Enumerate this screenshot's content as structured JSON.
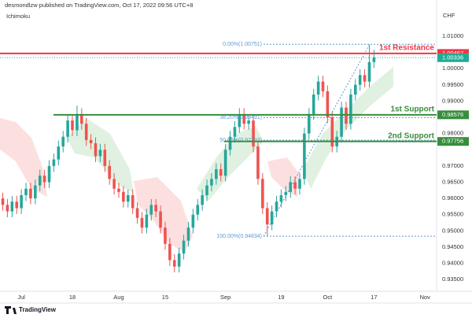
{
  "chart_data": {
    "type": "candlestick",
    "header": "desmondlzw published on TradingView.com, Oct 17, 2022 09:56 UTC+8",
    "indicator": "Ichimoku",
    "currency": "CHF",
    "footer": "TradingView",
    "up_color": "#26a69a",
    "down_color": "#ef5350",
    "x": [
      -4,
      -3,
      -2,
      -1,
      0,
      1,
      2,
      3,
      4,
      5,
      6,
      7,
      8,
      9,
      10,
      11,
      12,
      13,
      14,
      15,
      16,
      17,
      18,
      19,
      20,
      21,
      22,
      23,
      24,
      25,
      26,
      27,
      28,
      29,
      30,
      31,
      32,
      33,
      34,
      35,
      36,
      37,
      38,
      39,
      40,
      41,
      42,
      43,
      44,
      45,
      46,
      47,
      48,
      49,
      50,
      51,
      52,
      53,
      54,
      55,
      56,
      57,
      58,
      59,
      60,
      61,
      62,
      63,
      64,
      65,
      66,
      67,
      68,
      69,
      70,
      71,
      72,
      73,
      74,
      75,
      76
    ],
    "candles": [
      [
        0.96,
        0.9618,
        0.9562,
        0.958
      ],
      [
        0.958,
        0.9598,
        0.9542,
        0.956
      ],
      [
        0.956,
        0.9608,
        0.9542,
        0.959
      ],
      [
        0.959,
        0.9608,
        0.9552,
        0.957
      ],
      [
        0.957,
        0.9628,
        0.9552,
        0.961
      ],
      [
        0.961,
        0.9648,
        0.9592,
        0.963
      ],
      [
        0.963,
        0.9648,
        0.9582,
        0.96
      ],
      [
        0.96,
        0.9658,
        0.9582,
        0.964
      ],
      [
        0.964,
        0.9688,
        0.9622,
        0.967
      ],
      [
        0.967,
        0.9688,
        0.9632,
        0.965
      ],
      [
        0.965,
        0.9718,
        0.9632,
        0.97
      ],
      [
        0.97,
        0.9738,
        0.9682,
        0.972
      ],
      [
        0.972,
        0.9778,
        0.9702,
        0.976
      ],
      [
        0.976,
        0.9808,
        0.9742,
        0.979
      ],
      [
        0.979,
        0.9858,
        0.9772,
        0.984
      ],
      [
        0.984,
        0.9858,
        0.9792,
        0.981
      ],
      [
        0.981,
        0.9886,
        0.9792,
        0.986
      ],
      [
        0.986,
        0.9878,
        0.9812,
        0.983
      ],
      [
        0.983,
        0.9848,
        0.9762,
        0.978
      ],
      [
        0.978,
        0.9798,
        0.9752,
        0.977
      ],
      [
        0.977,
        0.9788,
        0.9712,
        0.973
      ],
      [
        0.973,
        0.9768,
        0.9712,
        0.975
      ],
      [
        0.975,
        0.9768,
        0.9682,
        0.97
      ],
      [
        0.97,
        0.9718,
        0.9642,
        0.966
      ],
      [
        0.966,
        0.9678,
        0.9612,
        0.963
      ],
      [
        0.963,
        0.9648,
        0.9602,
        0.962
      ],
      [
        0.962,
        0.9638,
        0.9572,
        0.959
      ],
      [
        0.959,
        0.9628,
        0.9572,
        0.961
      ],
      [
        0.961,
        0.9628,
        0.9552,
        0.957
      ],
      [
        0.957,
        0.9588,
        0.9522,
        0.954
      ],
      [
        0.954,
        0.9558,
        0.9492,
        0.951
      ],
      [
        0.951,
        0.9568,
        0.9492,
        0.955
      ],
      [
        0.955,
        0.9598,
        0.9532,
        0.958
      ],
      [
        0.958,
        0.9598,
        0.9542,
        0.956
      ],
      [
        0.956,
        0.9578,
        0.9492,
        0.951
      ],
      [
        0.951,
        0.9528,
        0.9442,
        0.946
      ],
      [
        0.946,
        0.9478,
        0.9392,
        0.941
      ],
      [
        0.941,
        0.9428,
        0.9372,
        0.939
      ],
      [
        0.939,
        0.9448,
        0.9372,
        0.943
      ],
      [
        0.943,
        0.9488,
        0.9412,
        0.947
      ],
      [
        0.947,
        0.9528,
        0.9452,
        0.951
      ],
      [
        0.951,
        0.9568,
        0.9492,
        0.955
      ],
      [
        0.955,
        0.9598,
        0.9532,
        0.958
      ],
      [
        0.958,
        0.9628,
        0.9562,
        0.961
      ],
      [
        0.961,
        0.9658,
        0.9592,
        0.964
      ],
      [
        0.964,
        0.9678,
        0.9622,
        0.966
      ],
      [
        0.966,
        0.9708,
        0.9642,
        0.969
      ],
      [
        0.969,
        0.9708,
        0.9652,
        0.967
      ],
      [
        0.967,
        0.9768,
        0.9652,
        0.975
      ],
      [
        0.975,
        0.9808,
        0.9732,
        0.979
      ],
      [
        0.979,
        0.9838,
        0.9772,
        0.982
      ],
      [
        0.982,
        0.9878,
        0.9802,
        0.986
      ],
      [
        0.986,
        0.9878,
        0.9812,
        0.983
      ],
      [
        0.983,
        0.9858,
        0.9812,
        0.984
      ],
      [
        0.984,
        0.9858,
        0.9742,
        0.976
      ],
      [
        0.976,
        0.9778,
        0.9642,
        0.966
      ],
      [
        0.966,
        0.9678,
        0.9552,
        0.957
      ],
      [
        0.957,
        0.9588,
        0.9483,
        0.952
      ],
      [
        0.952,
        0.9578,
        0.9502,
        0.956
      ],
      [
        0.956,
        0.9608,
        0.9542,
        0.959
      ],
      [
        0.959,
        0.9628,
        0.9572,
        0.961
      ],
      [
        0.961,
        0.9638,
        0.9592,
        0.962
      ],
      [
        0.962,
        0.9668,
        0.9602,
        0.965
      ],
      [
        0.965,
        0.9668,
        0.9612,
        0.963
      ],
      [
        0.963,
        0.9678,
        0.9612,
        0.966
      ],
      [
        0.966,
        0.9818,
        0.9642,
        0.98
      ],
      [
        0.98,
        0.9878,
        0.9782,
        0.986
      ],
      [
        0.986,
        0.9938,
        0.9842,
        0.992
      ],
      [
        0.992,
        0.9978,
        0.9902,
        0.996
      ],
      [
        0.996,
        0.9978,
        0.9912,
        0.993
      ],
      [
        0.993,
        0.9948,
        0.9832,
        0.985
      ],
      [
        0.985,
        0.9868,
        0.9742,
        0.976
      ],
      [
        0.976,
        0.9808,
        0.9742,
        0.979
      ],
      [
        0.979,
        0.9898,
        0.9772,
        0.988
      ],
      [
        0.988,
        0.9898,
        0.9812,
        0.983
      ],
      [
        0.983,
        0.9938,
        0.9812,
        0.992
      ],
      [
        0.992,
        0.9968,
        0.9902,
        0.995
      ],
      [
        0.995,
        0.9998,
        0.9932,
        0.998
      ],
      [
        0.998,
        0.9998,
        0.9942,
        0.996
      ],
      [
        0.996,
        1.0075,
        0.9942,
        1.002
      ],
      [
        1.002,
        1.0058,
        1.0002,
        1.00336
      ]
    ],
    "xlim": [
      -4.6,
      89.5
    ],
    "ylim": [
      0.9314,
      1.0175
    ],
    "xticks": [
      {
        "value": 0,
        "label": "Jul"
      },
      {
        "value": 11,
        "label": "18"
      },
      {
        "value": 21,
        "label": "Aug"
      },
      {
        "value": 31,
        "label": "15"
      },
      {
        "value": 44,
        "label": "Sep"
      },
      {
        "value": 56,
        "label": "19"
      },
      {
        "value": 66,
        "label": "Oct"
      },
      {
        "value": 76,
        "label": "17"
      },
      {
        "value": 87,
        "label": "Nov"
      }
    ],
    "yticks": [
      {
        "value": 1.01,
        "label": "1.01000"
      },
      {
        "value": 1.0,
        "label": "1.00000"
      },
      {
        "value": 0.995,
        "label": "0.99500"
      },
      {
        "value": 0.99,
        "label": "0.99000"
      },
      {
        "value": 0.98,
        "label": "0.98000"
      },
      {
        "value": 0.97,
        "label": "0.97000"
      },
      {
        "value": 0.965,
        "label": "0.96500"
      },
      {
        "value": 0.96,
        "label": "0.96000"
      },
      {
        "value": 0.955,
        "label": "0.95500"
      },
      {
        "value": 0.95,
        "label": "0.95000"
      },
      {
        "value": 0.945,
        "label": "0.94500"
      },
      {
        "value": 0.94,
        "label": "0.94000"
      },
      {
        "value": 0.935,
        "label": "0.93500"
      }
    ],
    "levels": [
      {
        "name": "1st Resistance",
        "value": 1.00467,
        "label": "1.00467",
        "color": "#f23645"
      },
      {
        "name": "1st Support",
        "value": 0.98576,
        "label": "0.98576",
        "color": "#388e3c"
      },
      {
        "name": "2nd Support",
        "value": 0.97756,
        "label": "0.97756",
        "color": "#388e3c"
      }
    ],
    "last_price": {
      "value": 1.00336,
      "label": "1.00336",
      "color": "#22ab94"
    },
    "fib": [
      {
        "value": 1.00751,
        "label": "0.00%(1.00751)"
      },
      {
        "value": 0.98491,
        "label": "38.20%(0.98491)"
      },
      {
        "value": 0.97793,
        "label": "50.00%(0.97793)"
      },
      {
        "value": 0.94834,
        "label": "100.00%(0.94834)"
      }
    ],
    "fib_color": "#5b9bd5"
  }
}
